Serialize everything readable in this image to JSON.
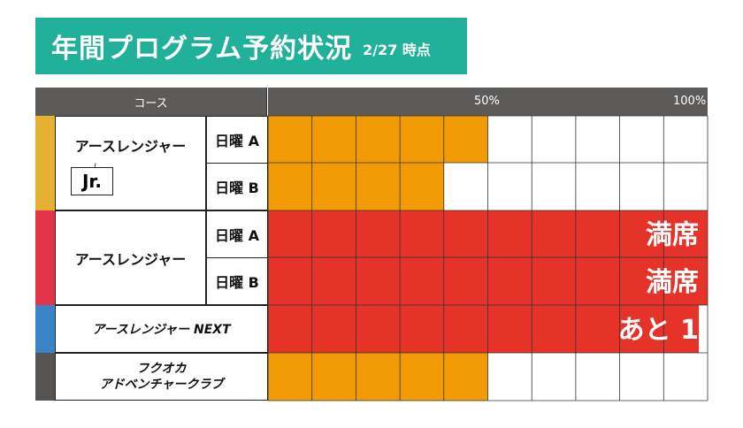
{
  "title": {
    "main": "年間プログラム予約状況",
    "sub": "2/27 時点"
  },
  "header": {
    "course_label": "コース",
    "tick_50": "50%",
    "tick_100": "100%"
  },
  "courses": [
    {
      "name": "アースレンジャー",
      "badge": "Jr.",
      "color": "#e6b132",
      "slots": [
        {
          "label": "日曜 A",
          "fill": 50,
          "status": ""
        },
        {
          "label": "日曜 B",
          "fill": 40,
          "status": ""
        }
      ]
    },
    {
      "name": "アースレンジャー",
      "color": "#e2344a",
      "slots": [
        {
          "label": "日曜 A",
          "fill": 100,
          "status": "満席"
        },
        {
          "label": "日曜 B",
          "fill": 100,
          "status": "満席"
        }
      ]
    },
    {
      "name": "アースレンジャー NEXT",
      "color": "#3a84c6",
      "fill": 98,
      "status": "あと 1"
    },
    {
      "name_line1": "フクオカ",
      "name_line2": "アドベンチャークラブ",
      "color": "#555453",
      "fill": 50,
      "status": ""
    }
  ],
  "colors": {
    "fill_partial": "#f29b05",
    "fill_full": "#e5332a",
    "title_bg": "#21b09a",
    "header_bg": "#5d5b59"
  },
  "chart_data": {
    "type": "bar",
    "orientation": "horizontal",
    "title": "年間プログラム予約状況",
    "categories": [
      "アースレンジャー Jr. 日曜 A",
      "アースレンジャー Jr. 日曜 B",
      "アースレンジャー 日曜 A",
      "アースレンジャー 日曜 B",
      "アースレンジャー NEXT",
      "フクオカ アドベンチャークラブ"
    ],
    "values": [
      50,
      40,
      100,
      100,
      98,
      50
    ],
    "xlim": [
      0,
      100
    ],
    "x_ticks": [
      "50%",
      "100%"
    ],
    "grid": true,
    "annotations": [
      "満席",
      "満席",
      "あと 1"
    ]
  }
}
